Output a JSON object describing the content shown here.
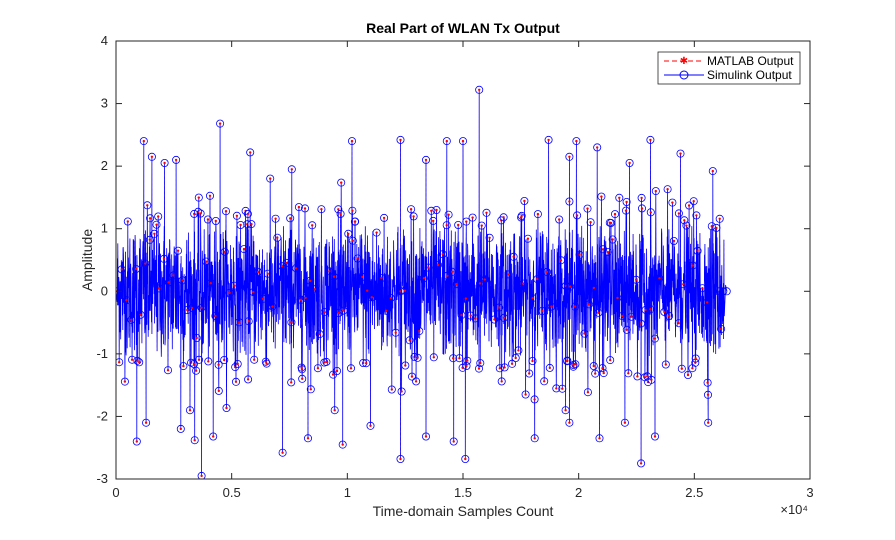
{
  "chart_data": {
    "type": "line",
    "title": "Real Part of WLAN Tx Output",
    "xlabel": "Time-domain Samples Count",
    "ylabel": "Amplitude",
    "x_multiplier_label": "×10⁴",
    "xlim": [
      0,
      30000
    ],
    "ylim": [
      -3,
      4
    ],
    "x_ticks": [
      0,
      5000,
      10000,
      15000,
      20000,
      25000,
      30000
    ],
    "x_tick_labels": [
      "0",
      "0.5",
      "1",
      "1.5",
      "2",
      "2.5",
      "3"
    ],
    "y_ticks": [
      -3,
      -2,
      -1,
      0,
      1,
      2,
      3,
      4
    ],
    "y_tick_labels": [
      "-3",
      "-2",
      "-1",
      "0",
      "1",
      "2",
      "3",
      "4"
    ],
    "grid": false,
    "legend_position": "top-right",
    "sample_count": 26400,
    "data_range": {
      "x_start": 0,
      "x_end": 26400
    },
    "series": [
      {
        "name": "MATLAB Output",
        "style": "dashed line, star markers",
        "color": "#ff0000",
        "envelope": {
          "typical_min": -1.3,
          "typical_max": 1.3
        }
      },
      {
        "name": "Simulink Output",
        "style": "solid line, circle markers",
        "color": "#0000ff",
        "envelope": {
          "typical_min": -1.3,
          "typical_max": 1.3
        }
      }
    ],
    "notable_peaks": [
      {
        "x": 1200,
        "y": 2.4
      },
      {
        "x": 1550,
        "y": 2.15
      },
      {
        "x": 2100,
        "y": 2.05
      },
      {
        "x": 2600,
        "y": 2.1
      },
      {
        "x": 4500,
        "y": 2.68
      },
      {
        "x": 5800,
        "y": 2.22
      },
      {
        "x": 7600,
        "y": 1.95
      },
      {
        "x": 10200,
        "y": 2.4
      },
      {
        "x": 12300,
        "y": 2.42
      },
      {
        "x": 13400,
        "y": 2.1
      },
      {
        "x": 14300,
        "y": 2.4
      },
      {
        "x": 15000,
        "y": 2.4
      },
      {
        "x": 15700,
        "y": 3.22
      },
      {
        "x": 18700,
        "y": 2.42
      },
      {
        "x": 19600,
        "y": 2.15
      },
      {
        "x": 19900,
        "y": 2.4
      },
      {
        "x": 20800,
        "y": 2.3
      },
      {
        "x": 22200,
        "y": 2.05
      },
      {
        "x": 23100,
        "y": 2.42
      },
      {
        "x": 24400,
        "y": 2.2
      },
      {
        "x": 25800,
        "y": 1.92
      }
    ],
    "notable_troughs": [
      {
        "x": 900,
        "y": -2.4
      },
      {
        "x": 1300,
        "y": -2.1
      },
      {
        "x": 2800,
        "y": -2.2
      },
      {
        "x": 3400,
        "y": -2.38
      },
      {
        "x": 3700,
        "y": -2.95
      },
      {
        "x": 4200,
        "y": -2.32
      },
      {
        "x": 7200,
        "y": -2.58
      },
      {
        "x": 8300,
        "y": -2.35
      },
      {
        "x": 9800,
        "y": -2.45
      },
      {
        "x": 11000,
        "y": -2.15
      },
      {
        "x": 12300,
        "y": -2.68
      },
      {
        "x": 13400,
        "y": -2.32
      },
      {
        "x": 14600,
        "y": -2.4
      },
      {
        "x": 15100,
        "y": -2.68
      },
      {
        "x": 18100,
        "y": -2.35
      },
      {
        "x": 19600,
        "y": -2.1
      },
      {
        "x": 20900,
        "y": -2.35
      },
      {
        "x": 22000,
        "y": -2.1
      },
      {
        "x": 22700,
        "y": -2.75
      },
      {
        "x": 23300,
        "y": -2.32
      },
      {
        "x": 25600,
        "y": -2.1
      }
    ]
  }
}
